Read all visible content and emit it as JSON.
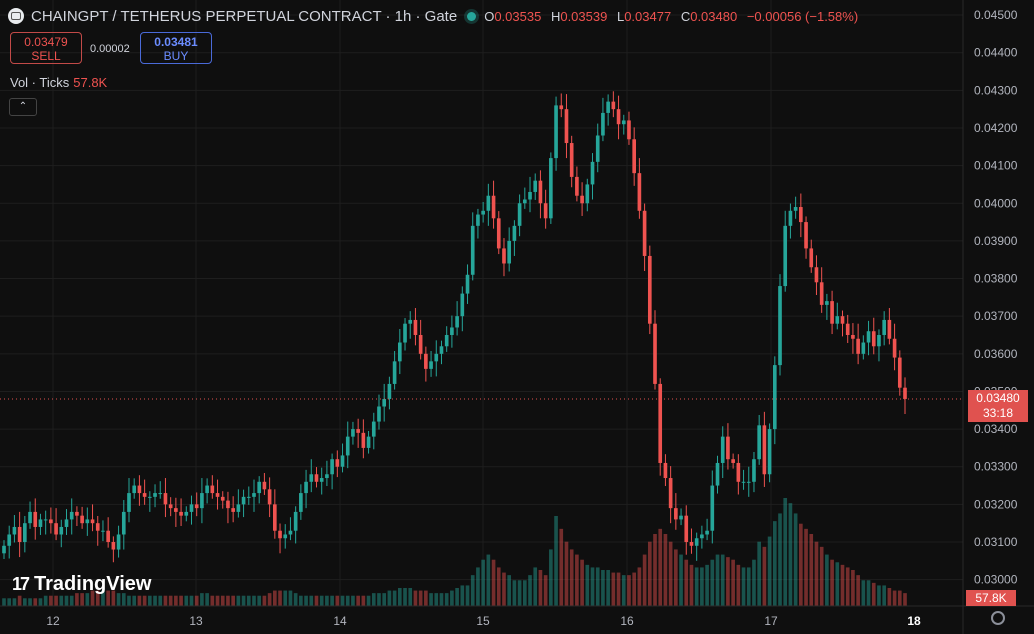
{
  "header": {
    "symbol": "CHAINGPT / TETHERUS PERPETUAL CONTRACT · 1h · Gate",
    "o_label": "O",
    "o": "0.03535",
    "h_label": "H",
    "h": "0.03539",
    "l_label": "L",
    "l": "0.03477",
    "c_label": "C",
    "c": "0.03480",
    "change": "−0.00056 (−1.58%)"
  },
  "trade": {
    "sell_price": "0.03479",
    "sell_label": "SELL",
    "spread": "0.00002",
    "buy_price": "0.03481",
    "buy_label": "BUY"
  },
  "volume_legend": {
    "label": "Vol · Ticks",
    "value": "57.8K"
  },
  "collapse_glyph": "⌃",
  "brand": {
    "name": "TradingView",
    "mark": "17"
  },
  "price_label": {
    "price": "0.03480",
    "countdown": "33:18"
  },
  "volume_label": "57.8K",
  "colors": {
    "up": "#26a69a",
    "down": "#ef5350",
    "background": "#0f0f0f"
  },
  "chart_data": {
    "type": "candlestick",
    "interval": "1h",
    "ylim": [
      0.0293,
      0.0454
    ],
    "yticks": [
      "0.04500",
      "0.04400",
      "0.04300",
      "0.04200",
      "0.04100",
      "0.04000",
      "0.03900",
      "0.03800",
      "0.03700",
      "0.03600",
      "0.03500",
      "0.03400",
      "0.03300",
      "0.03200",
      "0.03100",
      "0.03000"
    ],
    "xticks": [
      "12",
      "13",
      "14",
      "15",
      "16",
      "17",
      "18"
    ],
    "last_price": 0.0348,
    "close": [
      0.0309,
      0.0312,
      0.0314,
      0.031,
      0.0315,
      0.0318,
      0.0314,
      0.0316,
      0.0316,
      0.0315,
      0.0312,
      0.0314,
      0.0316,
      0.0318,
      0.0317,
      0.0315,
      0.0316,
      0.0315,
      0.0313,
      0.0313,
      0.031,
      0.0308,
      0.0312,
      0.0318,
      0.0323,
      0.0325,
      0.0323,
      0.0322,
      0.0322,
      0.0323,
      0.0323,
      0.032,
      0.0319,
      0.0318,
      0.0317,
      0.0318,
      0.032,
      0.0319,
      0.0323,
      0.0325,
      0.0323,
      0.0322,
      0.0321,
      0.0319,
      0.0318,
      0.032,
      0.0322,
      0.0322,
      0.0323,
      0.0326,
      0.0324,
      0.032,
      0.0313,
      0.0311,
      0.0312,
      0.0313,
      0.0318,
      0.0323,
      0.0326,
      0.0328,
      0.0326,
      0.0327,
      0.0328,
      0.0332,
      0.033,
      0.0333,
      0.0338,
      0.034,
      0.0339,
      0.0335,
      0.0338,
      0.0342,
      0.0346,
      0.0348,
      0.0352,
      0.0358,
      0.0363,
      0.0368,
      0.0369,
      0.0365,
      0.036,
      0.0356,
      0.0358,
      0.036,
      0.0362,
      0.0365,
      0.0367,
      0.037,
      0.0376,
      0.0381,
      0.0394,
      0.0397,
      0.0398,
      0.0402,
      0.0396,
      0.0388,
      0.0384,
      0.039,
      0.0394,
      0.04,
      0.0401,
      0.0403,
      0.0406,
      0.04,
      0.0396,
      0.0412,
      0.0426,
      0.0425,
      0.0416,
      0.0407,
      0.0402,
      0.04,
      0.0405,
      0.0411,
      0.0418,
      0.0424,
      0.0427,
      0.0425,
      0.0421,
      0.0422,
      0.0417,
      0.0408,
      0.0398,
      0.0386,
      0.0368,
      0.0352,
      0.0331,
      0.0327,
      0.0319,
      0.0316,
      0.0317,
      0.031,
      0.0309,
      0.0311,
      0.0312,
      0.0313,
      0.0325,
      0.0331,
      0.0338,
      0.0332,
      0.0331,
      0.0326,
      0.0326,
      0.0326,
      0.0332,
      0.0341,
      0.0328,
      0.034,
      0.0357,
      0.0378,
      0.0394,
      0.0398,
      0.0399,
      0.0395,
      0.0388,
      0.0383,
      0.0379,
      0.0373,
      0.0374,
      0.0368,
      0.037,
      0.0368,
      0.0365,
      0.0364,
      0.036,
      0.0363,
      0.0366,
      0.0362,
      0.0365,
      0.0369,
      0.0364,
      0.0359,
      0.0351,
      0.0348
    ],
    "volume": [
      0.3,
      0.3,
      0.3,
      0.4,
      0.3,
      0.3,
      0.3,
      0.3,
      0.4,
      0.4,
      0.4,
      0.4,
      0.4,
      0.4,
      0.5,
      0.5,
      0.5,
      0.6,
      0.6,
      0.6,
      0.6,
      0.6,
      0.5,
      0.5,
      0.4,
      0.4,
      0.4,
      0.4,
      0.4,
      0.4,
      0.4,
      0.4,
      0.4,
      0.4,
      0.4,
      0.4,
      0.4,
      0.4,
      0.5,
      0.5,
      0.4,
      0.4,
      0.4,
      0.4,
      0.4,
      0.4,
      0.4,
      0.4,
      0.4,
      0.4,
      0.4,
      0.5,
      0.6,
      0.6,
      0.6,
      0.6,
      0.5,
      0.4,
      0.4,
      0.4,
      0.4,
      0.4,
      0.4,
      0.4,
      0.4,
      0.4,
      0.4,
      0.4,
      0.4,
      0.4,
      0.4,
      0.5,
      0.5,
      0.5,
      0.6,
      0.6,
      0.7,
      0.7,
      0.7,
      0.6,
      0.6,
      0.6,
      0.5,
      0.5,
      0.5,
      0.5,
      0.6,
      0.7,
      0.8,
      0.8,
      1.2,
      1.5,
      1.8,
      2.0,
      1.8,
      1.5,
      1.3,
      1.2,
      1.0,
      1.0,
      1.0,
      1.2,
      1.5,
      1.4,
      1.2,
      2.2,
      3.5,
      3.0,
      2.5,
      2.2,
      2.0,
      1.8,
      1.6,
      1.5,
      1.5,
      1.4,
      1.4,
      1.3,
      1.3,
      1.2,
      1.2,
      1.3,
      1.5,
      2.0,
      2.5,
      2.8,
      3.0,
      2.8,
      2.5,
      2.2,
      2.0,
      1.8,
      1.6,
      1.5,
      1.5,
      1.6,
      1.8,
      2.0,
      2.0,
      1.9,
      1.8,
      1.6,
      1.5,
      1.5,
      1.8,
      2.5,
      2.3,
      2.7,
      3.3,
      3.6,
      4.2,
      4.0,
      3.6,
      3.2,
      3.0,
      2.8,
      2.5,
      2.3,
      2.0,
      1.8,
      1.7,
      1.6,
      1.5,
      1.4,
      1.2,
      1.0,
      1.0,
      0.9,
      0.8,
      0.8,
      0.7,
      0.6,
      0.6,
      0.5
    ]
  }
}
